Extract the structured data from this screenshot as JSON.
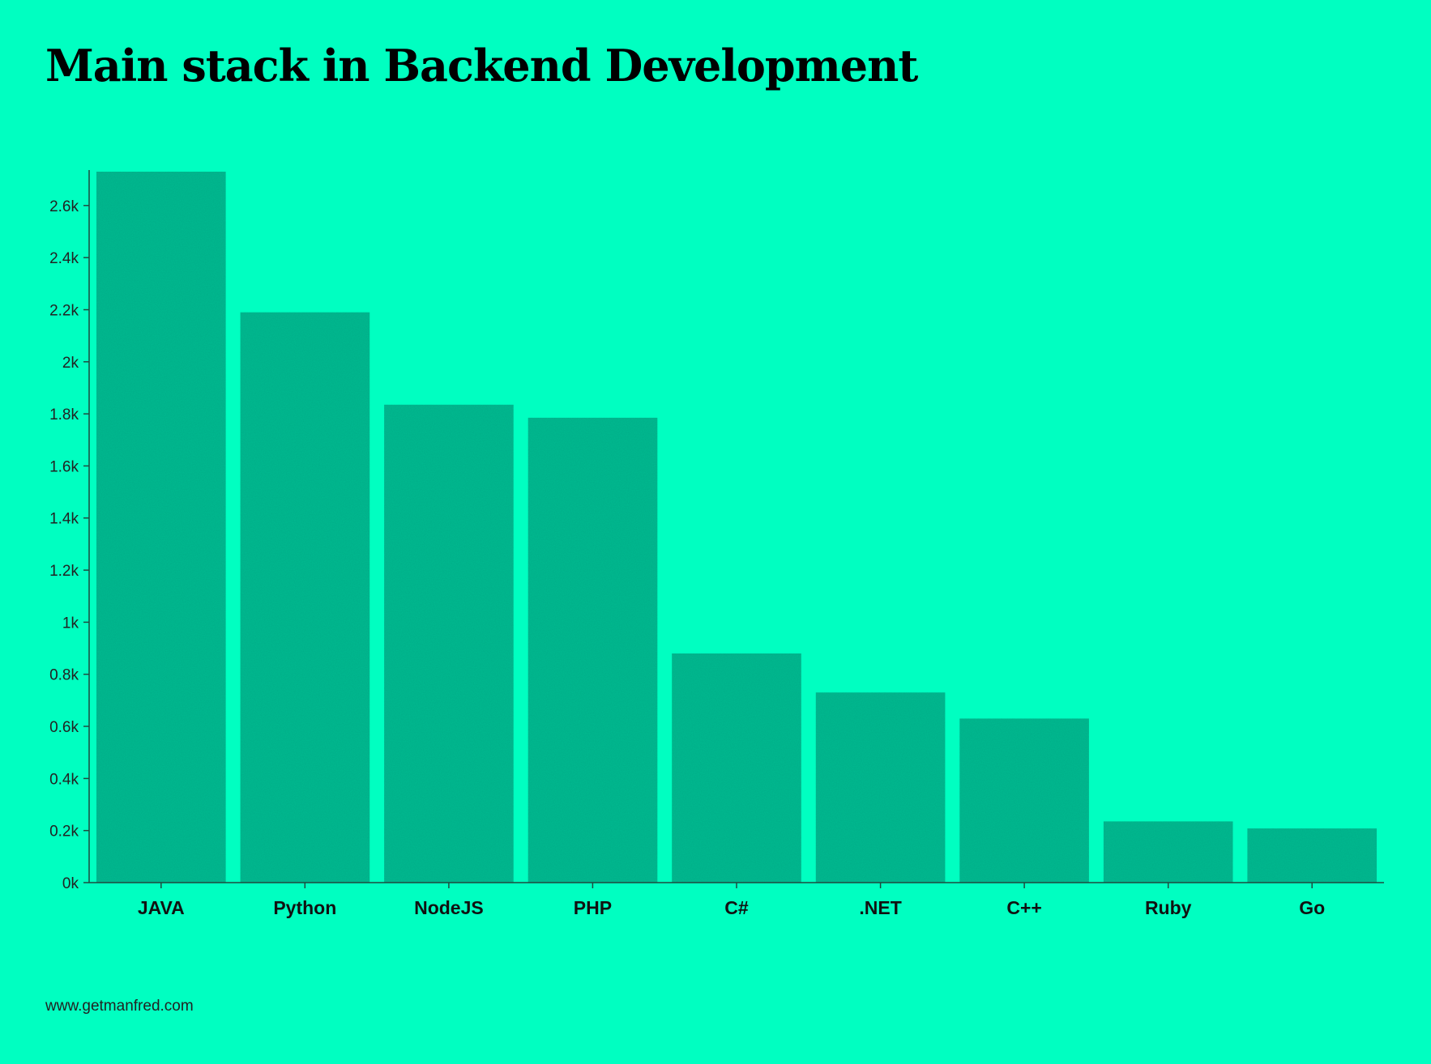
{
  "page": {
    "title": "Main stack in Backend Development",
    "footer": "www.getmanfred.com"
  },
  "colors": {
    "background": "#00FFC1",
    "bar": "#00BC91",
    "axis": "#1F4A3F",
    "text": "#111111"
  },
  "chart_data": {
    "type": "bar",
    "title": "Main stack in Backend Development",
    "categories": [
      "JAVA",
      "Python",
      "NodeJS",
      "PHP",
      "C#",
      ".NET",
      "C++",
      "Ruby",
      "Go"
    ],
    "values": [
      2730,
      2190,
      1835,
      1785,
      880,
      730,
      630,
      235,
      208
    ],
    "xlabel": "",
    "ylabel": "",
    "ylim": [
      0,
      2730
    ],
    "yticks": [
      0,
      200,
      400,
      600,
      800,
      1000,
      1200,
      1400,
      1600,
      1800,
      2000,
      2200,
      2400,
      2600
    ],
    "ytick_labels": [
      "0k",
      "0.2k",
      "0.4k",
      "0.6k",
      "0.8k",
      "1k",
      "1.2k",
      "1.4k",
      "1.6k",
      "1.8k",
      "2k",
      "2.2k",
      "2.4k",
      "2.6k"
    ],
    "grid": false,
    "legend": "none"
  }
}
